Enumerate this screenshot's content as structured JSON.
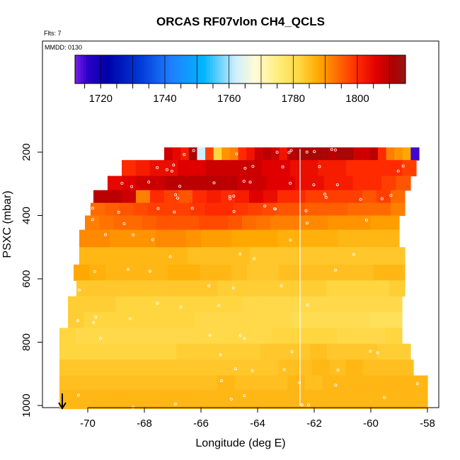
{
  "chart_data": {
    "type": "heatmap",
    "title": "ORCAS RF07vlon CH4_QCLS",
    "flts_label": "Flts: 7",
    "mmdd_label": "MMDD: 0130",
    "xlabel": "Longitude (deg E)",
    "ylabel": "PSXC (mbar)",
    "xlim": [
      -71,
      -58
    ],
    "ylim": [
      1010,
      120
    ],
    "x_ticks": [
      -70,
      -68,
      -66,
      -64,
      -62,
      -60,
      -58
    ],
    "y_ticks": [
      200,
      400,
      600,
      800,
      1000
    ],
    "colorbar": {
      "range": [
        1712,
        1815
      ],
      "ticks": [
        1720,
        1740,
        1760,
        1780,
        1800
      ],
      "bounds": [
        1712,
        1720,
        1730,
        1740,
        1750,
        1760,
        1770,
        1780,
        1790,
        1800,
        1810,
        1815
      ],
      "colors": [
        "#7a1fe6",
        "#0000b0",
        "#0033d0",
        "#1f8fff",
        "#00b6ff",
        "#d8f0ff",
        "#fff8c8",
        "#ffd23a",
        "#ffa000",
        "#ff2000",
        "#c00000",
        "#9a1a1a"
      ]
    },
    "vertical_line_x": -62.5,
    "arrow_x": -70.9,
    "rows": [
      {
        "p": 200,
        "x0": -67.3,
        "x1": -58.3,
        "values": [
          1808,
          1805,
          1802,
          1812,
          1762,
          1798,
          1782,
          1790,
          1792,
          1800,
          1803,
          1808,
          1810,
          1808,
          1803,
          1810,
          1812,
          1812,
          1812,
          1812,
          1810,
          1812,
          1812,
          1808,
          1808,
          1810,
          1800,
          1792,
          1790,
          1788,
          1715
        ]
      },
      {
        "p": 250,
        "x0": -68.8,
        "x1": -58.4,
        "values": [
          1800,
          1802,
          1804,
          1804,
          1806,
          1806,
          1808,
          1808,
          1808,
          1808,
          1806,
          1806,
          1804,
          1804,
          1802,
          1802,
          1800,
          1800,
          1800,
          1800,
          1798
        ]
      },
      {
        "p": 300,
        "x0": -69.3,
        "x1": -58.6,
        "values": [
          1805,
          1806,
          1808,
          1808,
          1810,
          1810,
          1810,
          1810,
          1810,
          1808,
          1808,
          1806,
          1806,
          1804,
          1804,
          1802,
          1802,
          1800,
          1800,
          1798,
          1796
        ]
      },
      {
        "p": 340,
        "x0": -69.8,
        "x1": -58.8,
        "values": [
          1810,
          1810,
          1808,
          1792,
          1800,
          1798,
          1796,
          1800,
          1802,
          1800,
          1802,
          1806,
          1804,
          1800,
          1800,
          1798,
          1798,
          1798,
          1798,
          1796,
          1798,
          1794
        ]
      },
      {
        "p": 380,
        "x0": -69.9,
        "x1": -58.8,
        "values": [
          1794,
          1795,
          1796,
          1797,
          1798,
          1798,
          1798,
          1799,
          1800,
          1800,
          1799,
          1798,
          1797,
          1796,
          1796,
          1795,
          1795,
          1795,
          1794,
          1794,
          1794,
          1792
        ]
      },
      {
        "p": 420,
        "x0": -70.1,
        "x1": -59.0,
        "values": [
          1792,
          1793,
          1794,
          1794,
          1795,
          1796,
          1796,
          1796,
          1797,
          1797,
          1796,
          1794,
          1793,
          1792,
          1792,
          1791,
          1791,
          1790,
          1790,
          1790,
          1789,
          1789
        ]
      },
      {
        "p": 470,
        "x0": -70.3,
        "x1": -59.0,
        "values": [
          1791,
          1791,
          1790,
          1790,
          1790,
          1791,
          1791,
          1790,
          1789,
          1789,
          1788,
          1788,
          1788,
          1787,
          1787,
          1787,
          1787,
          1786,
          1786,
          1786,
          1786
        ]
      },
      {
        "p": 530,
        "x0": -70.3,
        "x1": -58.8,
        "values": [
          1786,
          1786,
          1786,
          1786,
          1786,
          1786,
          1786,
          1785,
          1785,
          1785,
          1785,
          1784,
          1784,
          1784,
          1784,
          1784,
          1784,
          1784,
          1784,
          1784,
          1784
        ]
      },
      {
        "p": 580,
        "x0": -70.5,
        "x1": -58.8,
        "values": [
          1788,
          1787,
          1786,
          1786,
          1786,
          1786,
          1787,
          1787,
          1786,
          1786,
          1785,
          1784,
          1784,
          1785,
          1785,
          1785,
          1785,
          1785,
          1785,
          1786,
          1786
        ]
      },
      {
        "p": 630,
        "x0": -70.4,
        "x1": -58.8,
        "values": [
          1784,
          1784,
          1784,
          1784,
          1784,
          1784,
          1784,
          1784,
          1784,
          1783,
          1783,
          1783,
          1783,
          1783,
          1783,
          1783,
          1782,
          1782,
          1782,
          1782,
          1783
        ]
      },
      {
        "p": 680,
        "x0": -70.7,
        "x1": -58.9,
        "values": [
          1783,
          1783,
          1783,
          1782,
          1782,
          1782,
          1782,
          1782,
          1782,
          1782,
          1782,
          1781,
          1781,
          1781,
          1781,
          1781,
          1781,
          1781,
          1781,
          1781,
          1781
        ]
      },
      {
        "p": 730,
        "x0": -70.7,
        "x1": -58.9,
        "values": [
          1783,
          1782,
          1782,
          1782,
          1782,
          1782,
          1782,
          1782,
          1781,
          1781,
          1781,
          1781,
          1781,
          1781,
          1780,
          1780,
          1780,
          1780,
          1780,
          1779,
          1779
        ]
      },
      {
        "p": 780,
        "x0": -71.0,
        "x1": -58.9,
        "values": [
          1782,
          1781,
          1781,
          1781,
          1781,
          1781,
          1781,
          1781,
          1781,
          1781,
          1781,
          1781,
          1781,
          1782,
          1782,
          1782,
          1782,
          1781,
          1781,
          1781,
          1782
        ]
      },
      {
        "p": 830,
        "x0": -71.0,
        "x1": -58.6,
        "values": [
          1782,
          1782,
          1782,
          1782,
          1782,
          1782,
          1782,
          1783,
          1783,
          1783,
          1783,
          1783,
          1784,
          1784,
          1784,
          1785,
          1784,
          1784,
          1784,
          1783,
          1783
        ]
      },
      {
        "p": 880,
        "x0": -71.0,
        "x1": -58.5,
        "values": [
          1784,
          1784,
          1784,
          1784,
          1784,
          1784,
          1784,
          1784,
          1784,
          1784,
          1784,
          1784,
          1784,
          1785,
          1785,
          1786,
          1785,
          1786,
          1785,
          1785,
          1785
        ]
      },
      {
        "p": 930,
        "x0": -71.0,
        "x1": -58.0,
        "values": [
          1785,
          1785,
          1785,
          1785,
          1785,
          1785,
          1785,
          1785,
          1785,
          1786,
          1785,
          1785,
          1785,
          1786,
          1785,
          1786,
          1786,
          1786,
          1786,
          1786,
          1786
        ]
      },
      {
        "p": 970,
        "x0": -71.0,
        "x1": -58.0,
        "values": [
          1786,
          1786,
          1786,
          1786,
          1786,
          1786,
          1786,
          1786,
          1786,
          1786,
          1786,
          1786,
          1786,
          1786,
          1786,
          1786,
          1786,
          1786,
          1786,
          1786,
          1786
        ]
      },
      {
        "p": 1005,
        "x0": -71.0,
        "x1": -58.0,
        "values": [
          1786,
          1786,
          1786,
          1786,
          1786,
          1786,
          1786,
          1786,
          1786,
          1786,
          1786,
          1786,
          1786,
          1786,
          1786,
          1786,
          1786,
          1786,
          1786,
          1786,
          1786
        ]
      }
    ]
  }
}
